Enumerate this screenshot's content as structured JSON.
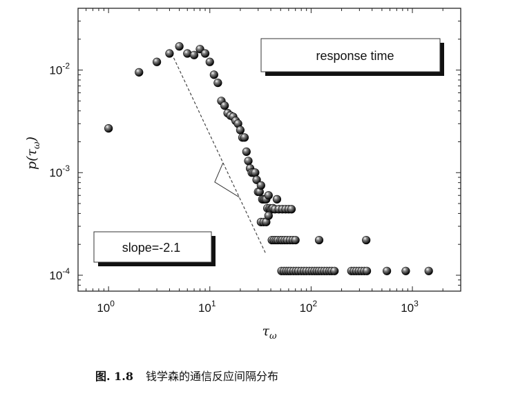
{
  "chart_data": {
    "type": "scatter",
    "xscale": "log",
    "yscale": "log",
    "xlim": [
      0.5,
      3000
    ],
    "ylim": [
      7e-05,
      0.04
    ],
    "xticks": [
      {
        "value": 1,
        "base": "10",
        "exp": "0"
      },
      {
        "value": 10,
        "base": "10",
        "exp": "1"
      },
      {
        "value": 100,
        "base": "10",
        "exp": "2"
      },
      {
        "value": 1000,
        "base": "10",
        "exp": "3"
      }
    ],
    "yticks": [
      {
        "value": 0.0001,
        "base": "10",
        "exp": "-4"
      },
      {
        "value": 0.001,
        "base": "10",
        "exp": "-3"
      },
      {
        "value": 0.01,
        "base": "10",
        "exp": "-2"
      }
    ],
    "xlabel": {
      "main": "τ",
      "sub": "ω"
    },
    "ylabel": {
      "main": "p(τ",
      "sub": "ω",
      "close": ")"
    },
    "legend": {
      "label": "response time",
      "position": "top-right"
    },
    "annotation": {
      "label": "slope=-2.1",
      "position": "bottom-left"
    },
    "fit_line": {
      "slope": -2.1,
      "x_start": 4.2,
      "x_end": 36
    },
    "points": [
      [
        1,
        0.0027
      ],
      [
        2,
        0.0095
      ],
      [
        3,
        0.012
      ],
      [
        4,
        0.0145
      ],
      [
        5,
        0.017
      ],
      [
        6,
        0.0145
      ],
      [
        7,
        0.014
      ],
      [
        8,
        0.016
      ],
      [
        9,
        0.0145
      ],
      [
        10,
        0.012
      ],
      [
        11,
        0.009
      ],
      [
        12,
        0.0075
      ],
      [
        13,
        0.005
      ],
      [
        14,
        0.0045
      ],
      [
        15,
        0.0038
      ],
      [
        16,
        0.0036
      ],
      [
        17,
        0.0035
      ],
      [
        18,
        0.0032
      ],
      [
        19,
        0.003
      ],
      [
        20,
        0.0026
      ],
      [
        21,
        0.0022
      ],
      [
        22,
        0.0022
      ],
      [
        23,
        0.0016
      ],
      [
        24,
        0.0013
      ],
      [
        25,
        0.0011
      ],
      [
        26,
        0.001
      ],
      [
        27,
        0.001
      ],
      [
        28,
        0.001
      ],
      [
        29,
        0.00085
      ],
      [
        30,
        0.00065
      ],
      [
        31,
        0.00065
      ],
      [
        32,
        0.00075
      ],
      [
        33,
        0.00055
      ],
      [
        34,
        0.00055
      ],
      [
        35,
        0.00055
      ],
      [
        36,
        0.00055
      ],
      [
        37,
        0.00045
      ],
      [
        38,
        0.0006
      ],
      [
        39,
        0.00045
      ],
      [
        40,
        0.00044
      ],
      [
        41,
        0.00044
      ],
      [
        42,
        0.00045
      ],
      [
        44,
        0.00044
      ],
      [
        46,
        0.00055
      ],
      [
        48,
        0.00044
      ],
      [
        32,
        0.00033
      ],
      [
        34,
        0.00033
      ],
      [
        36,
        0.00033
      ],
      [
        38,
        0.00038
      ],
      [
        52,
        0.00044
      ],
      [
        56,
        0.00044
      ],
      [
        60,
        0.00044
      ],
      [
        64,
        0.00044
      ],
      [
        41,
        0.00022
      ],
      [
        43,
        0.00022
      ],
      [
        45,
        0.00022
      ],
      [
        47,
        0.00022
      ],
      [
        50,
        0.00022
      ],
      [
        52,
        0.00022
      ],
      [
        55,
        0.00022
      ],
      [
        58,
        0.00022
      ],
      [
        62,
        0.00022
      ],
      [
        66,
        0.00022
      ],
      [
        70,
        0.00022
      ],
      [
        120,
        0.00022
      ],
      [
        350,
        0.00022
      ],
      [
        51,
        0.00011
      ],
      [
        54,
        0.00011
      ],
      [
        57,
        0.00011
      ],
      [
        60,
        0.00011
      ],
      [
        63,
        0.00011
      ],
      [
        67,
        0.00011
      ],
      [
        71,
        0.00011
      ],
      [
        75,
        0.00011
      ],
      [
        80,
        0.00011
      ],
      [
        85,
        0.00011
      ],
      [
        90,
        0.00011
      ],
      [
        96,
        0.00011
      ],
      [
        102,
        0.00011
      ],
      [
        108,
        0.00011
      ],
      [
        114,
        0.00011
      ],
      [
        120,
        0.00011
      ],
      [
        127,
        0.00011
      ],
      [
        135,
        0.00011
      ],
      [
        143,
        0.00011
      ],
      [
        152,
        0.00011
      ],
      [
        160,
        0.00011
      ],
      [
        170,
        0.00011
      ],
      [
        250,
        0.00011
      ],
      [
        265,
        0.00011
      ],
      [
        280,
        0.00011
      ],
      [
        297,
        0.00011
      ],
      [
        315,
        0.00011
      ],
      [
        335,
        0.00011
      ],
      [
        355,
        0.00011
      ],
      [
        560,
        0.00011
      ],
      [
        860,
        0.00011
      ],
      [
        1450,
        0.00011
      ]
    ]
  },
  "caption": {
    "figure_label": "图. 1.8",
    "text": "钱学森的通信反应间隔分布"
  }
}
